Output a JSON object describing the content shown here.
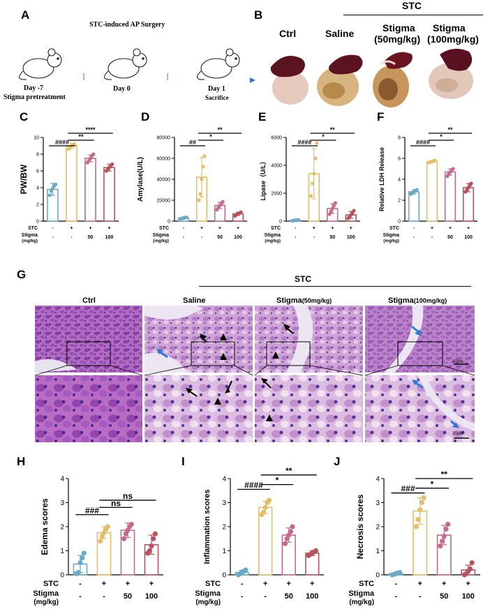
{
  "letters": {
    "A": "A",
    "B": "B",
    "C": "C",
    "D": "D",
    "E": "E",
    "F": "F",
    "G": "G",
    "H": "H",
    "I": "I",
    "J": "J"
  },
  "timeline": {
    "surgery": "STC-induced AP Surgery",
    "day_m7": "Day -7",
    "pretreat": "Stigma pretreatment",
    "day0": "Day 0",
    "day1": "Day 1",
    "sacrifice": "Sacrifice"
  },
  "photos": {
    "stc": "STC",
    "labels": [
      "Ctrl",
      "Saline",
      "Stigma",
      "(50mg/kg)",
      "Stigma",
      "(100mg/kg)"
    ]
  },
  "histology": {
    "stc": "STC",
    "labels": [
      "Ctrl",
      "Saline",
      "Stigma",
      "(50mg/kg)",
      "Stigma",
      "(100mg/kg)"
    ],
    "scale_top": "50μM",
    "scale_bottom": "20μM"
  },
  "treat": {
    "stc_label": "STC",
    "stigma_label": "Stigma",
    "unit_label": "(mg/kg)",
    "stc": [
      "-",
      "+",
      "+",
      "+"
    ],
    "stigma": [
      "-",
      "-",
      "50",
      "100"
    ]
  },
  "colors": {
    "ctrl": "#6aaac8",
    "saline": "#e2bd6a",
    "s50": "#c46a8c",
    "s100": "#b5545e"
  },
  "chart_data": [
    {
      "id": "C",
      "type": "bar",
      "ylabel": "PW/BW",
      "ylim": [
        0,
        10
      ],
      "yticks": [
        0,
        2,
        4,
        6,
        8,
        10
      ],
      "series": [
        {
          "values": [
            3.8,
            9.0,
            7.5,
            6.4
          ],
          "errors": [
            0.7,
            0.3,
            0.4,
            0.4
          ],
          "points": [
            [
              3.1,
              3.6,
              3.9,
              4.2,
              4.4
            ],
            [
              8.6,
              8.8,
              9.0,
              9.1,
              9.2
            ],
            [
              7.0,
              7.2,
              7.5,
              7.8,
              8.0
            ],
            [
              6.0,
              6.2,
              6.4,
              6.6,
              6.8
            ]
          ]
        }
      ],
      "annotations": [
        {
          "text": "####",
          "from": 0,
          "to": 1
        },
        {
          "text": "**",
          "from": 1,
          "to": 2
        },
        {
          "text": "****",
          "from": 1,
          "to": 3
        }
      ]
    },
    {
      "id": "D",
      "type": "bar",
      "ylabel": "Amylase(U/L)",
      "ylim": [
        0,
        80000
      ],
      "yticks": [
        0,
        20000,
        40000,
        60000,
        80000
      ],
      "series": [
        {
          "values": [
            3000,
            42000,
            15000,
            7000
          ],
          "errors": [
            700,
            19000,
            3000,
            1500
          ],
          "points": [
            [
              2200,
              2800,
              3000,
              3300,
              3700
            ],
            [
              20000,
              26000,
              40000,
              52000,
              62000
            ],
            [
              11000,
              13500,
              15000,
              16500,
              18500
            ],
            [
              5000,
              6200,
              7000,
              7800,
              8500
            ]
          ]
        }
      ],
      "annotations": [
        {
          "text": "##",
          "from": 0,
          "to": 1
        },
        {
          "text": "*",
          "from": 1,
          "to": 2
        },
        {
          "text": "**",
          "from": 1,
          "to": 3
        }
      ]
    },
    {
      "id": "E",
      "type": "bar",
      "ylabel": "Lipase（U/L）",
      "ylim": [
        0,
        6000
      ],
      "yticks": [
        0,
        2000,
        4000,
        6000
      ],
      "series": [
        {
          "values": [
            60,
            3400,
            900,
            450
          ],
          "errors": [
            30,
            1800,
            350,
            250
          ],
          "points": [
            [
              30,
              50,
              60,
              70,
              90
            ],
            [
              1800,
              2700,
              3400,
              4500,
              5600
            ],
            [
              500,
              700,
              900,
              1100,
              1300
            ],
            [
              200,
              300,
              450,
              550,
              750
            ]
          ]
        }
      ],
      "annotations": [
        {
          "text": "####",
          "from": 0,
          "to": 1
        },
        {
          "text": "*",
          "from": 1,
          "to": 2
        },
        {
          "text": "**",
          "from": 1,
          "to": 3
        }
      ]
    },
    {
      "id": "F",
      "type": "bar",
      "ylabel": "Relative LDH Release",
      "ylim": [
        0,
        8
      ],
      "yticks": [
        0,
        2,
        4,
        6,
        8
      ],
      "series": [
        {
          "values": [
            2.8,
            5.7,
            4.7,
            3.2
          ],
          "errors": [
            0.2,
            0.1,
            0.3,
            0.4
          ],
          "points": [
            [
              2.6,
              2.7,
              2.8,
              2.9,
              3.0
            ],
            [
              5.6,
              5.65,
              5.7,
              5.75,
              5.8
            ],
            [
              4.3,
              4.5,
              4.7,
              4.9,
              5.0
            ],
            [
              2.8,
              3.0,
              3.2,
              3.4,
              3.6
            ]
          ]
        }
      ],
      "annotations": [
        {
          "text": "####",
          "from": 0,
          "to": 1
        },
        {
          "text": "*",
          "from": 1,
          "to": 2
        },
        {
          "text": "**",
          "from": 1,
          "to": 3
        }
      ]
    },
    {
      "id": "H",
      "type": "bar",
      "ylabel": "Edema scores",
      "ylim": [
        0,
        4
      ],
      "yticks": [
        0,
        1,
        2,
        3,
        4
      ],
      "series": [
        {
          "values": [
            0.45,
            1.75,
            1.85,
            1.25
          ],
          "errors": [
            0.35,
            0.25,
            0.3,
            0.4
          ],
          "points": [
            [
              0.05,
              0.1,
              0.5,
              0.7,
              0.9
            ],
            [
              1.4,
              1.6,
              1.75,
              1.9,
              2.0
            ],
            [
              1.5,
              1.7,
              1.85,
              2.0,
              2.1
            ],
            [
              0.9,
              1.0,
              1.2,
              1.5,
              1.7
            ]
          ]
        }
      ],
      "annotations": [
        {
          "text": "###",
          "from": 0,
          "to": 1
        },
        {
          "text": "ns",
          "from": 1,
          "to": 2
        },
        {
          "text": "ns",
          "from": 1,
          "to": 3
        }
      ]
    },
    {
      "id": "I",
      "type": "bar",
      "ylabel": "Inflammation scores",
      "ylim": [
        0,
        4
      ],
      "yticks": [
        0,
        1,
        2,
        3,
        4
      ],
      "series": [
        {
          "values": [
            0.1,
            2.8,
            1.65,
            0.9
          ],
          "errors": [
            0.1,
            0.25,
            0.3,
            0.1
          ],
          "points": [
            [
              0.0,
              0.05,
              0.1,
              0.15,
              0.2
            ],
            [
              2.5,
              2.6,
              2.8,
              3.0,
              3.1
            ],
            [
              1.3,
              1.5,
              1.65,
              1.8,
              2.0
            ],
            [
              0.8,
              0.85,
              0.9,
              0.95,
              1.0
            ]
          ]
        }
      ],
      "annotations": [
        {
          "text": "####",
          "from": 0,
          "to": 1
        },
        {
          "text": "*",
          "from": 1,
          "to": 2
        },
        {
          "text": "**",
          "from": 1,
          "to": 3
        }
      ]
    },
    {
      "id": "J",
      "type": "bar",
      "ylabel": "Necrosis scores",
      "ylim": [
        0,
        4
      ],
      "yticks": [
        0,
        1,
        2,
        3,
        4
      ],
      "series": [
        {
          "values": [
            0.05,
            2.65,
            1.65,
            0.2
          ],
          "errors": [
            0.03,
            0.55,
            0.4,
            0.2
          ],
          "points": [
            [
              0.0,
              0.02,
              0.05,
              0.07,
              0.1
            ],
            [
              2.0,
              2.3,
              2.7,
              3.0,
              3.2
            ],
            [
              1.2,
              1.4,
              1.6,
              1.9,
              2.1
            ],
            [
              0.0,
              0.05,
              0.15,
              0.25,
              0.5
            ]
          ]
        }
      ],
      "annotations": [
        {
          "text": "###",
          "from": 0,
          "to": 1
        },
        {
          "text": "*",
          "from": 1,
          "to": 2
        },
        {
          "text": "**",
          "from": 1,
          "to": 3
        }
      ]
    }
  ]
}
